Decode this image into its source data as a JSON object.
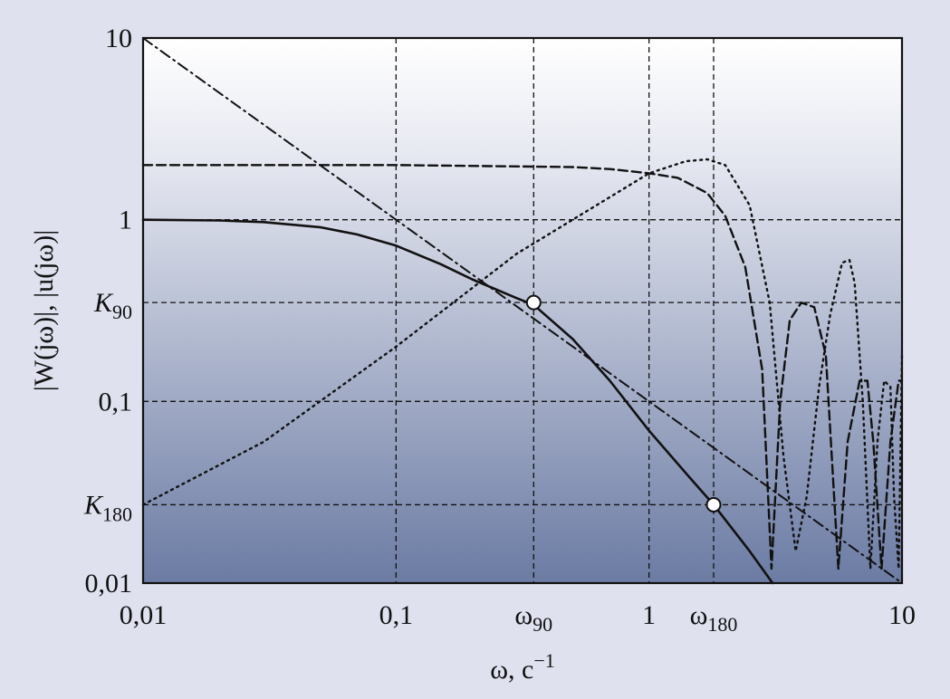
{
  "chart_data": {
    "type": "line",
    "x_scale": "log",
    "y_scale": "log",
    "xlim": [
      0.01,
      10
    ],
    "ylim": [
      0.01,
      10
    ],
    "grid": true,
    "xlabel": {
      "main": "ω, с",
      "sup": "−1"
    },
    "ylabel": "|W(jω)|, |u(jω)|",
    "x_ticks": [
      {
        "value": 0.01,
        "label": "0,01"
      },
      {
        "value": 0.1,
        "label": "0,1"
      },
      {
        "value": 0.35,
        "label": "ω",
        "sub": "90"
      },
      {
        "value": 1,
        "label": "1"
      },
      {
        "value": 1.8,
        "label": "ω",
        "sub": "180"
      },
      {
        "value": 10,
        "label": "10"
      }
    ],
    "y_ticks": [
      {
        "value": 10,
        "label": "10"
      },
      {
        "value": 1,
        "label": "1"
      },
      {
        "value": 0.35,
        "label": "K",
        "sub": "90"
      },
      {
        "value": 0.1,
        "label": "0,1"
      },
      {
        "value": 0.027,
        "label": "K",
        "sub": "180"
      },
      {
        "value": 0.01,
        "label": "0,01"
      }
    ],
    "markers": [
      {
        "x": 0.35,
        "y": 0.35
      },
      {
        "x": 1.8,
        "y": 0.027
      }
    ],
    "series": [
      {
        "style": "solid",
        "x": [
          0.01,
          0.02,
          0.03,
          0.05,
          0.07,
          0.1,
          0.15,
          0.2,
          0.3,
          0.35,
          0.5,
          0.7,
          1.0,
          1.5,
          1.8,
          2.5,
          3.08
        ],
        "y": [
          1.0,
          0.99,
          0.97,
          0.91,
          0.83,
          0.72,
          0.57,
          0.47,
          0.37,
          0.34,
          0.22,
          0.13,
          0.069,
          0.036,
          0.027,
          0.015,
          0.01
        ]
      },
      {
        "style": "dashed",
        "x": [
          0.01,
          0.1,
          0.5,
          0.7,
          1.0,
          1.3,
          1.7,
          2.0,
          2.4,
          2.8,
          3.05,
          3.3,
          3.6,
          4.0,
          4.5,
          5.0,
          5.6,
          6.1,
          6.8,
          7.3,
          7.7,
          8.3,
          9.0,
          9.7,
          10.0
        ],
        "y": [
          2.0,
          2.0,
          1.95,
          1.9,
          1.8,
          1.7,
          1.4,
          1.05,
          0.55,
          0.15,
          0.012,
          0.1,
          0.28,
          0.35,
          0.33,
          0.18,
          0.012,
          0.06,
          0.13,
          0.13,
          0.06,
          0.012,
          0.06,
          0.13,
          0.13
        ]
      },
      {
        "style": "dotted",
        "x": [
          0.01,
          0.03,
          0.1,
          0.3,
          1.0,
          1.4,
          1.7,
          2.0,
          2.5,
          3.0,
          3.4,
          3.8,
          4.2,
          4.7,
          5.2,
          5.8,
          6.2,
          6.5,
          7.0,
          7.5,
          8.0,
          8.5,
          9.0,
          9.3,
          9.7,
          10.0
        ],
        "y": [
          0.027,
          0.06,
          0.2,
          0.65,
          1.8,
          2.1,
          2.15,
          2.0,
          1.2,
          0.35,
          0.05,
          0.015,
          0.03,
          0.12,
          0.3,
          0.58,
          0.6,
          0.45,
          0.1,
          0.012,
          0.06,
          0.13,
          0.12,
          0.03,
          0.012,
          0.18
        ]
      },
      {
        "style": "dashdot",
        "x": [
          0.01,
          10
        ],
        "y": [
          10,
          0.01
        ]
      }
    ]
  }
}
